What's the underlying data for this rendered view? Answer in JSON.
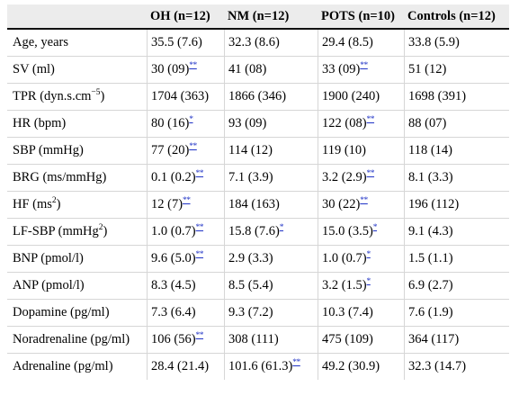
{
  "table": {
    "headers": [
      "",
      "OH (n=12)",
      "NM (n=12)",
      "POTS (n=10)",
      "Controls (n=12)"
    ],
    "rows": [
      {
        "label": "Age, years",
        "label_sup": "",
        "label_suffix": "",
        "cells": [
          {
            "v": "35.5 (7.6)",
            "sig": ""
          },
          {
            "v": "32.3 (8.6)",
            "sig": ""
          },
          {
            "v": "29.4 (8.5)",
            "sig": ""
          },
          {
            "v": "33.8 (5.9)",
            "sig": ""
          }
        ]
      },
      {
        "label": "SV (ml)",
        "label_sup": "",
        "label_suffix": "",
        "cells": [
          {
            "v": "30 (09)",
            "sig": "**"
          },
          {
            "v": "41 (08)",
            "sig": ""
          },
          {
            "v": "33 (09)",
            "sig": "**"
          },
          {
            "v": "51 (12)",
            "sig": ""
          }
        ]
      },
      {
        "label": "TPR (dyn.s.cm",
        "label_sup": "−5",
        "label_suffix": ")",
        "cells": [
          {
            "v": "1704 (363)",
            "sig": ""
          },
          {
            "v": "1866 (346)",
            "sig": ""
          },
          {
            "v": "1900 (240)",
            "sig": ""
          },
          {
            "v": "1698 (391)",
            "sig": ""
          }
        ]
      },
      {
        "label": "HR (bpm)",
        "label_sup": "",
        "label_suffix": "",
        "cells": [
          {
            "v": "80 (16)",
            "sig": "*"
          },
          {
            "v": "93 (09)",
            "sig": ""
          },
          {
            "v": "122 (08)",
            "sig": "**"
          },
          {
            "v": "88 (07)",
            "sig": ""
          }
        ]
      },
      {
        "label": "SBP (mmHg)",
        "label_sup": "",
        "label_suffix": "",
        "cells": [
          {
            "v": "77 (20)",
            "sig": "**"
          },
          {
            "v": "114 (12)",
            "sig": ""
          },
          {
            "v": "119 (10)",
            "sig": ""
          },
          {
            "v": "118 (14)",
            "sig": ""
          }
        ]
      },
      {
        "label": "BRG (ms/mmHg)",
        "label_sup": "",
        "label_suffix": "",
        "cells": [
          {
            "v": "0.1 (0.2)",
            "sig": "**"
          },
          {
            "v": "7.1 (3.9)",
            "sig": ""
          },
          {
            "v": "3.2 (2.9)",
            "sig": "**"
          },
          {
            "v": "8.1 (3.3)",
            "sig": ""
          }
        ]
      },
      {
        "label": "HF (ms",
        "label_sup": "2",
        "label_suffix": ")",
        "cells": [
          {
            "v": "12 (7)",
            "sig": "**"
          },
          {
            "v": "184 (163)",
            "sig": ""
          },
          {
            "v": "30 (22)",
            "sig": "**"
          },
          {
            "v": "196 (112)",
            "sig": ""
          }
        ]
      },
      {
        "label": "LF-SBP (mmHg",
        "label_sup": "2",
        "label_suffix": ")",
        "cells": [
          {
            "v": "1.0 (0.7)",
            "sig": "**"
          },
          {
            "v": "15.8 (7.6)",
            "sig": "*"
          },
          {
            "v": "15.0 (3.5)",
            "sig": "*"
          },
          {
            "v": "9.1 (4.3)",
            "sig": ""
          }
        ]
      },
      {
        "label": "BNP (pmol/l)",
        "label_sup": "",
        "label_suffix": "",
        "cells": [
          {
            "v": "9.6 (5.0)",
            "sig": "**"
          },
          {
            "v": "2.9 (3.3)",
            "sig": ""
          },
          {
            "v": "1.0 (0.7)",
            "sig": "*"
          },
          {
            "v": "1.5 (1.1)",
            "sig": ""
          }
        ]
      },
      {
        "label": "ANP (pmol/l)",
        "label_sup": "",
        "label_suffix": "",
        "cells": [
          {
            "v": "8.3 (4.5)",
            "sig": ""
          },
          {
            "v": "8.5 (5.4)",
            "sig": ""
          },
          {
            "v": "3.2 (1.5)",
            "sig": "*"
          },
          {
            "v": "6.9 (2.7)",
            "sig": ""
          }
        ]
      },
      {
        "label": "Dopamine (pg/ml)",
        "label_sup": "",
        "label_suffix": "",
        "cells": [
          {
            "v": "7.3 (6.4)",
            "sig": ""
          },
          {
            "v": "9.3 (7.2)",
            "sig": ""
          },
          {
            "v": "10.3 (7.4)",
            "sig": ""
          },
          {
            "v": "7.6 (1.9)",
            "sig": ""
          }
        ]
      },
      {
        "label": "Noradrenaline (pg/ml)",
        "label_sup": "",
        "label_suffix": "",
        "cells": [
          {
            "v": "106 (56)",
            "sig": "**"
          },
          {
            "v": "308 (111)",
            "sig": ""
          },
          {
            "v": "475 (109)",
            "sig": ""
          },
          {
            "v": "364 (117)",
            "sig": ""
          }
        ]
      },
      {
        "label": "Adrenaline (pg/ml)",
        "label_sup": "",
        "label_suffix": "",
        "cells": [
          {
            "v": "28.4 (21.4)",
            "sig": ""
          },
          {
            "v": "101.6 (61.3)",
            "sig": "**"
          },
          {
            "v": "49.2 (30.9)",
            "sig": ""
          },
          {
            "v": "32.3 (14.7)",
            "sig": ""
          }
        ]
      }
    ]
  }
}
